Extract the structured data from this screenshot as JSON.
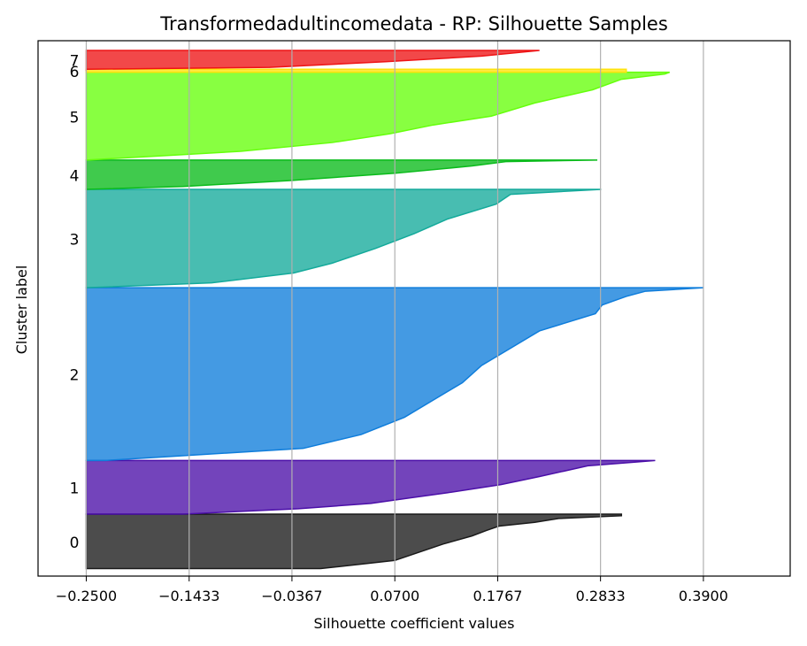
{
  "chart_data": {
    "type": "area",
    "title": "Transformedadultincomedata - RP: Silhouette Samples",
    "xlabel": "Silhouette coefficient values",
    "ylabel": "Cluster label",
    "xlim": [
      -0.3,
      0.48
    ],
    "xticks": [
      "-0.2500",
      "-0.1433",
      "-0.0367",
      "0.0700",
      "0.1767",
      "0.2833",
      "0.3900"
    ],
    "grid": "vertical",
    "clusters": [
      {
        "label": "0",
        "color": "#1a1a1a",
        "y_range": [
          0,
          725
        ],
        "profile": [
          [
            0,
            0.305
          ],
          [
            0.03,
            0.305
          ],
          [
            0.08,
            0.24
          ],
          [
            0.15,
            0.215
          ],
          [
            0.22,
            0.178
          ],
          [
            0.3,
            0.165
          ],
          [
            0.4,
            0.15
          ],
          [
            0.55,
            0.12
          ],
          [
            0.7,
            0.095
          ],
          [
            0.85,
            0.07
          ],
          [
            1,
            -0.007
          ]
        ]
      },
      {
        "label": "1",
        "color": "#4b0fa8",
        "y_range": [
          725,
          1440
        ],
        "profile": [
          [
            0,
            0.34
          ],
          [
            0.03,
            0.32
          ],
          [
            0.1,
            0.27
          ],
          [
            0.2,
            0.245
          ],
          [
            0.3,
            0.22
          ],
          [
            0.45,
            0.18
          ],
          [
            0.6,
            0.125
          ],
          [
            0.7,
            0.085
          ],
          [
            0.8,
            0.045
          ],
          [
            0.9,
            -0.03
          ],
          [
            1,
            -0.15
          ]
        ]
      },
      {
        "label": "2",
        "color": "#0f7ddb",
        "y_range": [
          1440,
          3740
        ],
        "profile": [
          [
            0,
            0.39
          ],
          [
            0.02,
            0.33
          ],
          [
            0.05,
            0.31
          ],
          [
            0.1,
            0.285
          ],
          [
            0.15,
            0.278
          ],
          [
            0.25,
            0.22
          ],
          [
            0.35,
            0.19
          ],
          [
            0.45,
            0.16
          ],
          [
            0.55,
            0.14
          ],
          [
            0.65,
            0.11
          ],
          [
            0.75,
            0.08
          ],
          [
            0.85,
            0.035
          ],
          [
            0.93,
            -0.025
          ],
          [
            1,
            -0.23
          ]
        ]
      },
      {
        "label": "3",
        "color": "#14aa9b",
        "y_range": [
          3740,
          5050
        ],
        "profile": [
          [
            0,
            0.284
          ],
          [
            0.05,
            0.19
          ],
          [
            0.15,
            0.175
          ],
          [
            0.3,
            0.125
          ],
          [
            0.45,
            0.09
          ],
          [
            0.6,
            0.05
          ],
          [
            0.75,
            0.005
          ],
          [
            0.85,
            -0.035
          ],
          [
            0.95,
            -0.12
          ],
          [
            1,
            -0.25
          ]
        ]
      },
      {
        "label": "4",
        "color": "#0abb1b",
        "y_range": [
          5050,
          5440
        ],
        "profile": [
          [
            0,
            0.28
          ],
          [
            0.05,
            0.185
          ],
          [
            0.2,
            0.15
          ],
          [
            0.45,
            0.07
          ],
          [
            0.7,
            -0.04
          ],
          [
            0.9,
            -0.15
          ],
          [
            1,
            -0.25
          ]
        ]
      },
      {
        "label": "5",
        "color": "#66ff0c",
        "y_range": [
          5440,
          6610
        ],
        "profile": [
          [
            0,
            0.355
          ],
          [
            0.02,
            0.35
          ],
          [
            0.08,
            0.305
          ],
          [
            0.2,
            0.275
          ],
          [
            0.35,
            0.215
          ],
          [
            0.5,
            0.17
          ],
          [
            0.6,
            0.11
          ],
          [
            0.7,
            0.065
          ],
          [
            0.8,
            0.005
          ],
          [
            0.9,
            -0.09
          ],
          [
            1,
            -0.25
          ]
        ]
      },
      {
        "label": "6",
        "color": "#ffe30c",
        "y_range": [
          6610,
          6650
        ],
        "profile": [
          [
            0,
            0.31
          ],
          [
            1,
            0.31
          ]
        ]
      },
      {
        "label": "7",
        "color": "#ee1416",
        "y_range": [
          6650,
          6900
        ],
        "profile": [
          [
            0,
            0.22
          ],
          [
            0.3,
            0.16
          ],
          [
            0.6,
            0.06
          ],
          [
            0.9,
            -0.06
          ],
          [
            1,
            -0.25
          ]
        ]
      }
    ],
    "ylim": [
      -100,
      7030
    ]
  }
}
